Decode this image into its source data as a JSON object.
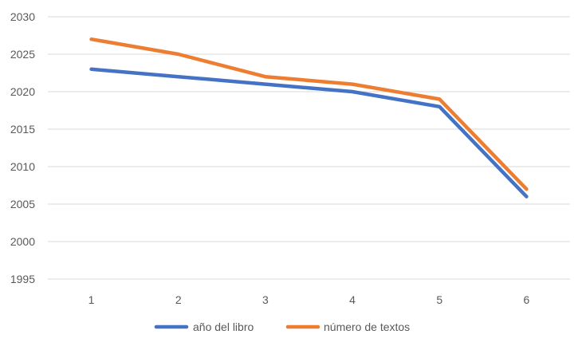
{
  "chart_data": {
    "type": "line",
    "x": [
      1,
      2,
      3,
      4,
      5,
      6
    ],
    "categories": [
      "1",
      "2",
      "3",
      "4",
      "5",
      "6"
    ],
    "series": [
      {
        "name": "año del libro",
        "values": [
          2023,
          2022,
          2021,
          2020,
          2018,
          2006
        ],
        "color": "#4472C4"
      },
      {
        "name": "número de textos",
        "values": [
          2027,
          2025,
          2022,
          2021,
          2019,
          2007
        ],
        "color": "#ED7D31"
      }
    ],
    "yticks": [
      "1995",
      "2000",
      "2005",
      "2010",
      "2015",
      "2020",
      "2025",
      "2030"
    ],
    "ylim": [
      1995,
      2030
    ],
    "grid": true,
    "legend_position": "bottom",
    "colors": {
      "grid": "#d9d9d9",
      "text": "#595959"
    }
  }
}
